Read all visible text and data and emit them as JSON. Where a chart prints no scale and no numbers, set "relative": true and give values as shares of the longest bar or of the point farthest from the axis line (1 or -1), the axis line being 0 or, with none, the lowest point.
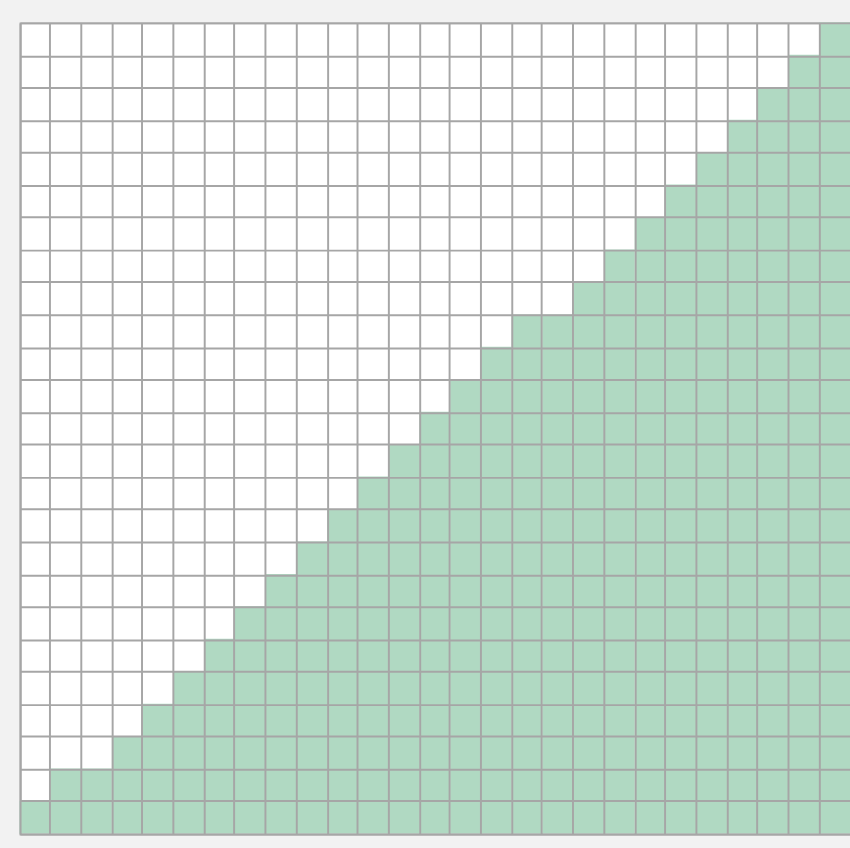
{
  "chart_data": {
    "type": "bar",
    "relative": true,
    "grid": true,
    "color": "#b0d9c2",
    "categories": [
      null,
      null,
      null,
      null,
      null,
      null,
      null,
      null,
      null,
      null,
      null,
      null,
      null,
      null,
      null,
      null,
      null,
      null,
      null,
      null,
      null,
      null,
      null,
      null,
      null,
      null,
      null
    ],
    "values": [
      0.04,
      0.08,
      0.08,
      0.12,
      0.16,
      0.2,
      0.24,
      0.28,
      0.32,
      0.36,
      0.4,
      0.44,
      0.48,
      0.52,
      0.56,
      0.6,
      0.64,
      0.64,
      0.68,
      0.72,
      0.76,
      0.8,
      0.84,
      0.88,
      0.92,
      0.96,
      1.0
    ]
  }
}
